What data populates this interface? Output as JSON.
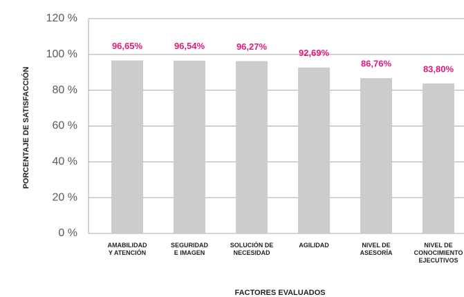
{
  "chart_data": {
    "type": "bar",
    "y_label": "PORCENTAJE DE SATISFACCIÓN",
    "x_label": "FACTORES EVALUADOS",
    "categories": [
      [
        "AMABILIDAD",
        "Y ATENCIÓN"
      ],
      [
        "SEGURIDAD",
        "E IMAGEN"
      ],
      [
        "SOLUCIÓN DE",
        "NECESIDAD"
      ],
      [
        "AGILIDAD"
      ],
      [
        "NIVEL DE",
        "ASESORÍA"
      ],
      [
        "NIVEL DE",
        "CONOCIMIENTO",
        "EJECUTIVOS"
      ]
    ],
    "values": [
      96.65,
      96.54,
      96.27,
      92.69,
      86.76,
      83.8
    ],
    "value_labels": [
      "96,65%",
      "96,54%",
      "96,27%",
      "92,69%",
      "86,76%",
      "83,80%"
    ],
    "color": "#cdcbcd",
    "label_color": "#e0197d",
    "ylim": [
      0,
      120
    ],
    "yticks": [
      {
        "value": 0,
        "label": "0 %"
      },
      {
        "value": 20,
        "label": "20 %"
      },
      {
        "value": 40,
        "label": "40 %"
      },
      {
        "value": 60,
        "label": "60 %"
      },
      {
        "value": 80,
        "label": "80 %"
      },
      {
        "value": 100,
        "label": "100 %"
      },
      {
        "value": 120,
        "label": "120 %"
      }
    ],
    "grid": true
  }
}
